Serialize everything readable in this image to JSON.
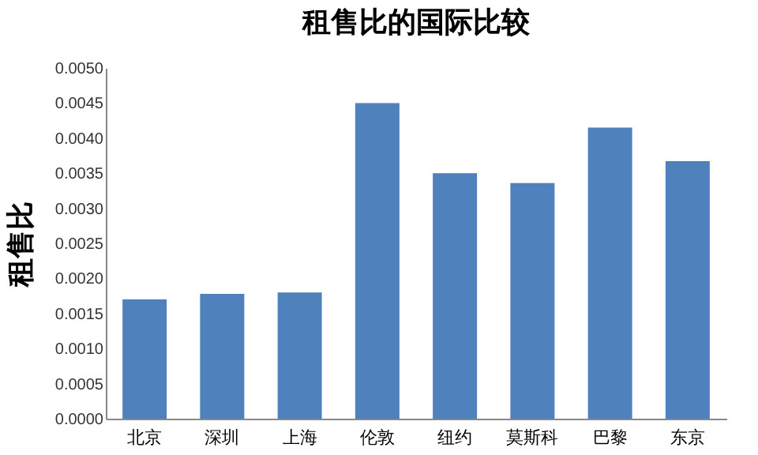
{
  "chart_data": {
    "type": "bar",
    "title": "租售比的国际比较",
    "ylabel": "租售比",
    "categories": [
      "北京",
      "深圳",
      "上海",
      "伦敦",
      "纽约",
      "莫斯科",
      "巴黎",
      "东京"
    ],
    "values": [
      0.0017,
      0.00178,
      0.0018,
      0.0045,
      0.0035,
      0.00336,
      0.00415,
      0.00367
    ],
    "color": "#4f81bd",
    "ylim": [
      0,
      0.005
    ],
    "yticks": [
      {
        "value": 0,
        "label": "0.0000"
      },
      {
        "value": 0.0005,
        "label": "0.0005"
      },
      {
        "value": 0.001,
        "label": "0.0010"
      },
      {
        "value": 0.0015,
        "label": "0.0015"
      },
      {
        "value": 0.002,
        "label": "0.0020"
      },
      {
        "value": 0.0025,
        "label": "0.0025"
      },
      {
        "value": 0.003,
        "label": "0.0030"
      },
      {
        "value": 0.0035,
        "label": "0.0035"
      },
      {
        "value": 0.004,
        "label": "0.0040"
      },
      {
        "value": 0.0045,
        "label": "0.0045"
      },
      {
        "value": 0.005,
        "label": "0.0050"
      }
    ],
    "grid": false,
    "legend": false
  }
}
